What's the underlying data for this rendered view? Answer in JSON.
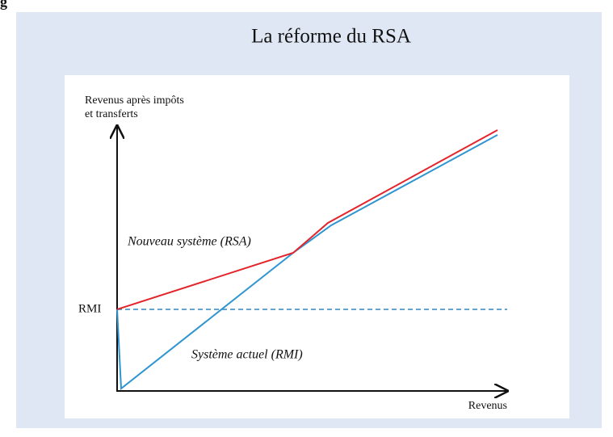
{
  "header_fragment": "g",
  "title": "La réforme du RSA",
  "y_axis_label": [
    "Revenus après impôts",
    "et transferts"
  ],
  "x_axis_label": "Revenus",
  "level_label": "RMI",
  "curve_labels": {
    "new": "Nouveau système (RSA)",
    "current": "Système actuel (RMI)"
  }
}
